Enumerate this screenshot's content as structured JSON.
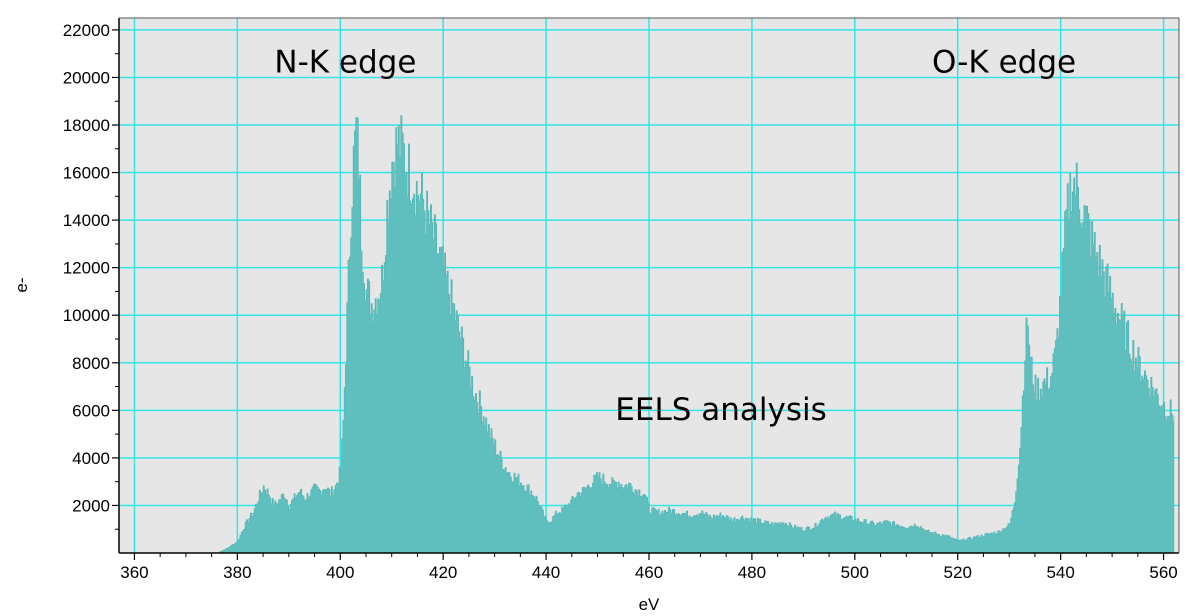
{
  "chart_data": {
    "type": "area",
    "title": "",
    "xlabel": "eV",
    "ylabel": "e-",
    "xlim": [
      357,
      563
    ],
    "ylim": [
      0,
      22500
    ],
    "x_ticks": [
      360,
      380,
      400,
      420,
      440,
      460,
      480,
      500,
      520,
      540,
      560
    ],
    "y_ticks": [
      2000,
      4000,
      6000,
      8000,
      10000,
      12000,
      14000,
      16000,
      18000,
      20000,
      22000
    ],
    "grid": true,
    "legend": "none",
    "colors": {
      "fill": "#5fbebe",
      "grid": "#33e5e5",
      "plot_bg": "#e6e6e6",
      "axis": "#000000"
    },
    "annotations": [
      {
        "text": "N-K edge",
        "x": 401,
        "y": 20200
      },
      {
        "text": "O-K edge",
        "x": 529,
        "y": 20200
      },
      {
        "text": "EELS analysis",
        "x": 474,
        "y": 5600
      }
    ],
    "series": [
      {
        "values": [
          [
            376,
            0
          ],
          [
            378,
            200
          ],
          [
            380,
            500
          ],
          [
            381,
            1000
          ],
          [
            382,
            1400
          ],
          [
            383,
            1700
          ],
          [
            384,
            2300
          ],
          [
            385,
            2800
          ],
          [
            386,
            2500
          ],
          [
            387,
            2000
          ],
          [
            388,
            2200
          ],
          [
            389,
            2500
          ],
          [
            390,
            2000
          ],
          [
            391,
            2300
          ],
          [
            392,
            2600
          ],
          [
            393,
            2300
          ],
          [
            394,
            2500
          ],
          [
            395,
            2700
          ],
          [
            396,
            2600
          ],
          [
            397,
            2800
          ],
          [
            398,
            2500
          ],
          [
            399,
            2800
          ],
          [
            400,
            3500
          ],
          [
            400.5,
            5500
          ],
          [
            401,
            8500
          ],
          [
            401.5,
            11500
          ],
          [
            402,
            14500
          ],
          [
            402.5,
            16500
          ],
          [
            403,
            17800
          ],
          [
            403.5,
            16500
          ],
          [
            404,
            13500
          ],
          [
            405,
            11000
          ],
          [
            406,
            10500
          ],
          [
            407,
            10800
          ],
          [
            408,
            11500
          ],
          [
            409,
            14500
          ],
          [
            410,
            16500
          ],
          [
            411,
            17300
          ],
          [
            412,
            17000
          ],
          [
            413,
            16200
          ],
          [
            414,
            15800
          ],
          [
            415,
            15200
          ],
          [
            416,
            14800
          ],
          [
            417,
            14000
          ],
          [
            418,
            13300
          ],
          [
            419,
            12600
          ],
          [
            420,
            11800
          ],
          [
            421,
            11000
          ],
          [
            422,
            10200
          ],
          [
            423,
            9300
          ],
          [
            424,
            8500
          ],
          [
            425,
            7600
          ],
          [
            426,
            6800
          ],
          [
            427,
            6300
          ],
          [
            428,
            5700
          ],
          [
            429,
            5000
          ],
          [
            430,
            4500
          ],
          [
            431,
            4000
          ],
          [
            432,
            3600
          ],
          [
            433,
            3300
          ],
          [
            434,
            3200
          ],
          [
            435,
            3000
          ],
          [
            436,
            2800
          ],
          [
            437,
            2600
          ],
          [
            438,
            2300
          ],
          [
            439,
            1800
          ],
          [
            440,
            1300
          ],
          [
            441,
            1400
          ],
          [
            442,
            1700
          ],
          [
            443,
            1800
          ],
          [
            444,
            2000
          ],
          [
            445,
            2200
          ],
          [
            446,
            2500
          ],
          [
            447,
            2600
          ],
          [
            448,
            2800
          ],
          [
            449,
            3000
          ],
          [
            450,
            3200
          ],
          [
            451,
            3100
          ],
          [
            452,
            3000
          ],
          [
            453,
            2900
          ],
          [
            454,
            3000
          ],
          [
            455,
            2800
          ],
          [
            456,
            2900
          ],
          [
            457,
            2700
          ],
          [
            458,
            2600
          ],
          [
            459,
            2500
          ],
          [
            460,
            1800
          ],
          [
            462,
            1700
          ],
          [
            464,
            1800
          ],
          [
            466,
            1700
          ],
          [
            468,
            1600
          ],
          [
            470,
            1700
          ],
          [
            472,
            1500
          ],
          [
            474,
            1600
          ],
          [
            476,
            1400
          ],
          [
            478,
            1500
          ],
          [
            480,
            1400
          ],
          [
            482,
            1300
          ],
          [
            484,
            1200
          ],
          [
            486,
            1300
          ],
          [
            488,
            1100
          ],
          [
            490,
            1000
          ],
          [
            492,
            1100
          ],
          [
            494,
            1500
          ],
          [
            496,
            1600
          ],
          [
            498,
            1500
          ],
          [
            500,
            1400
          ],
          [
            502,
            1300
          ],
          [
            504,
            1200
          ],
          [
            506,
            1300
          ],
          [
            508,
            1200
          ],
          [
            510,
            1100
          ],
          [
            512,
            1200
          ],
          [
            514,
            900
          ],
          [
            516,
            800
          ],
          [
            518,
            700
          ],
          [
            520,
            500
          ],
          [
            522,
            600
          ],
          [
            524,
            700
          ],
          [
            526,
            800
          ],
          [
            528,
            900
          ],
          [
            530,
            1200
          ],
          [
            531,
            2200
          ],
          [
            532,
            4500
          ],
          [
            533,
            8500
          ],
          [
            533.5,
            9800
          ],
          [
            534,
            8000
          ],
          [
            535,
            6900
          ],
          [
            536,
            7000
          ],
          [
            537,
            7200
          ],
          [
            538,
            7400
          ],
          [
            539,
            8500
          ],
          [
            540,
            11000
          ],
          [
            541,
            14000
          ],
          [
            542,
            15700
          ],
          [
            543,
            15400
          ],
          [
            544,
            14600
          ],
          [
            545,
            13900
          ],
          [
            546,
            13100
          ],
          [
            547,
            12500
          ],
          [
            548,
            11900
          ],
          [
            549,
            11300
          ],
          [
            550,
            10700
          ],
          [
            551,
            10100
          ],
          [
            552,
            9600
          ],
          [
            553,
            9000
          ],
          [
            554,
            8500
          ],
          [
            555,
            8000
          ],
          [
            556,
            7600
          ],
          [
            557,
            7200
          ],
          [
            558,
            6900
          ],
          [
            559,
            6500
          ],
          [
            560,
            6200
          ],
          [
            561,
            6000
          ],
          [
            562,
            5800
          ]
        ]
      }
    ]
  }
}
